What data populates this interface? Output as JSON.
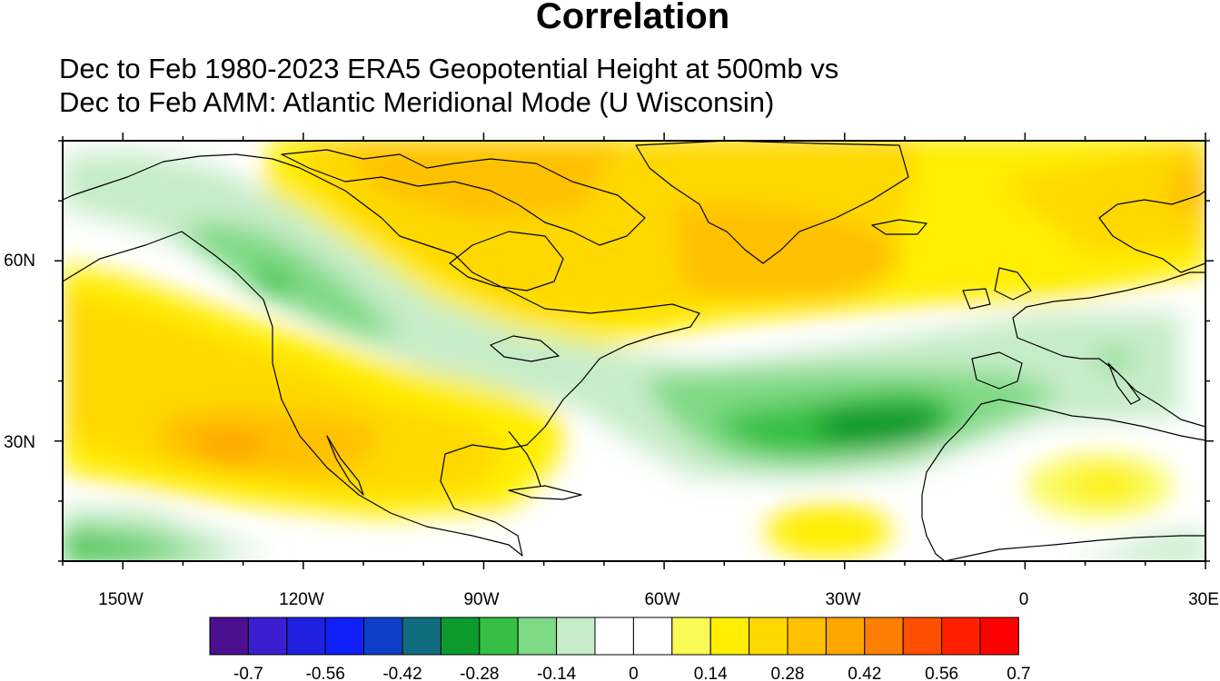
{
  "title": "Correlation",
  "subtitle": {
    "line1": "Dec to Feb 1980-2023 ERA5 Geopotential Height at 500mb vs",
    "line2": "Dec to Feb AMM: Atlantic Meridional Mode (U Wisconsin)"
  },
  "map": {
    "lon_range": [
      -160,
      30
    ],
    "lat_range": [
      10,
      80
    ],
    "x_tick_labels": [
      "150W",
      "120W",
      "90W",
      "60W",
      "30W",
      "0",
      "30E"
    ],
    "y_tick_labels": [
      "60N",
      "30N"
    ]
  },
  "colorbar": {
    "colors": [
      "#4b0f8f",
      "#3b1ed0",
      "#2020e0",
      "#0f20f8",
      "#0f3fc8",
      "#0f6d7f",
      "#0d9a2d",
      "#36c043",
      "#7ed984",
      "#c7ecc9",
      "#ffffff",
      "#ffffff",
      "#fafa57",
      "#ffee00",
      "#ffd800",
      "#ffc000",
      "#ffa600",
      "#ff7f00",
      "#ff4e00",
      "#ff2000",
      "#ff0000"
    ],
    "labels": [
      "-0.7",
      "-0.56",
      "-0.42",
      "-0.28",
      "-0.14",
      "0",
      "0.14",
      "0.28",
      "0.42",
      "0.56",
      "0.7"
    ]
  }
}
